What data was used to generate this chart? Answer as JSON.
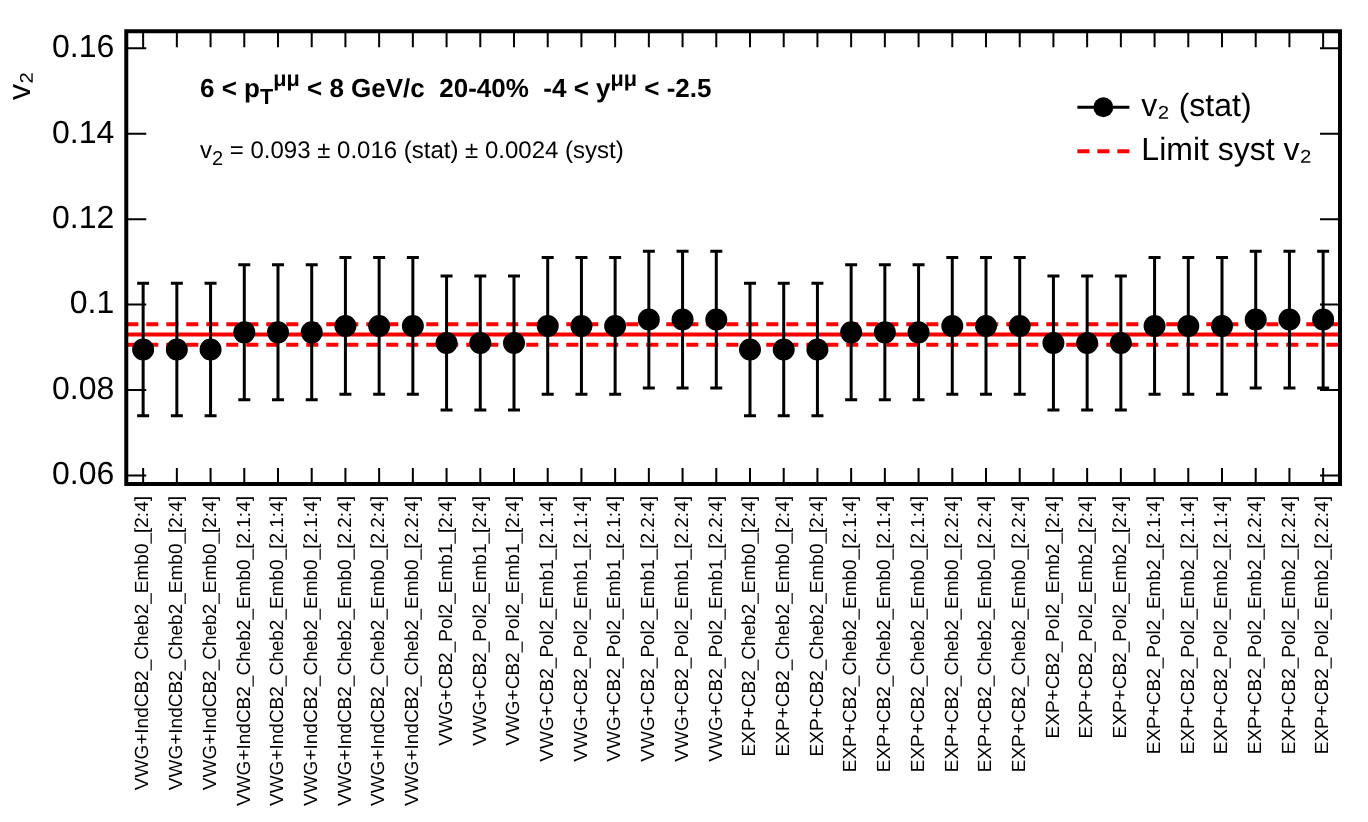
{
  "chart_data": {
    "type": "scatter",
    "ylabel": "v₂",
    "categories": [
      "VWG+IndCB2_Cheb2_Emb0_[2:4]",
      "VWG+IndCB2_Cheb2_Emb0_[2:4]",
      "VWG+IndCB2_Cheb2_Emb0_[2:4]",
      "VWG+IndCB2_Cheb2_Emb0_[2.1:4]",
      "VWG+IndCB2_Cheb2_Emb0_[2.1:4]",
      "VWG+IndCB2_Cheb2_Emb0_[2.1:4]",
      "VWG+IndCB2_Cheb2_Emb0_[2.2:4]",
      "VWG+IndCB2_Cheb2_Emb0_[2.2:4]",
      "VWG+IndCB2_Cheb2_Emb0_[2.2:4]",
      "VWG+CB2_Pol2_Emb1_[2:4]",
      "VWG+CB2_Pol2_Emb1_[2:4]",
      "VWG+CB2_Pol2_Emb1_[2:4]",
      "VWG+CB2_Pol2_Emb1_[2.1:4]",
      "VWG+CB2_Pol2_Emb1_[2.1:4]",
      "VWG+CB2_Pol2_Emb1_[2.1:4]",
      "VWG+CB2_Pol2_Emb1_[2.2:4]",
      "VWG+CB2_Pol2_Emb1_[2.2:4]",
      "VWG+CB2_Pol2_Emb1_[2.2:4]",
      "EXP+CB2_Cheb2_Emb0_[2:4]",
      "EXP+CB2_Cheb2_Emb0_[2:4]",
      "EXP+CB2_Cheb2_Emb0_[2:4]",
      "EXP+CB2_Cheb2_Emb0_[2.1:4]",
      "EXP+CB2_Cheb2_Emb0_[2.1:4]",
      "EXP+CB2_Cheb2_Emb0_[2.1:4]",
      "EXP+CB2_Cheb2_Emb0_[2.2:4]",
      "EXP+CB2_Cheb2_Emb0_[2.2:4]",
      "EXP+CB2_Cheb2_Emb0_[2.2:4]",
      "EXP+CB2_Pol2_Emb2_[2:4]",
      "EXP+CB2_Pol2_Emb2_[2:4]",
      "EXP+CB2_Pol2_Emb2_[2:4]",
      "EXP+CB2_Pol2_Emb2_[2.1:4]",
      "EXP+CB2_Pol2_Emb2_[2.1:4]",
      "EXP+CB2_Pol2_Emb2_[2.1:4]",
      "EXP+CB2_Pol2_Emb2_[2.2:4]",
      "EXP+CB2_Pol2_Emb2_[2.2:4]",
      "EXP+CB2_Pol2_Emb2_[2.2:4]"
    ],
    "series": [
      {
        "name": "v₂ (stat)",
        "color": "#000000",
        "values": [
          0.0895,
          0.0895,
          0.0895,
          0.0935,
          0.0935,
          0.0935,
          0.095,
          0.095,
          0.095,
          0.091,
          0.091,
          0.091,
          0.095,
          0.095,
          0.095,
          0.0965,
          0.0965,
          0.0965,
          0.0895,
          0.0895,
          0.0895,
          0.0935,
          0.0935,
          0.0935,
          0.095,
          0.095,
          0.095,
          0.091,
          0.091,
          0.091,
          0.095,
          0.095,
          0.095,
          0.0965,
          0.0965,
          0.0965
        ],
        "errors": [
          0.0155,
          0.0155,
          0.0155,
          0.0158,
          0.0158,
          0.0158,
          0.016,
          0.016,
          0.016,
          0.0157,
          0.0157,
          0.0157,
          0.016,
          0.016,
          0.016,
          0.016,
          0.016,
          0.016,
          0.0155,
          0.0155,
          0.0155,
          0.0158,
          0.0158,
          0.0158,
          0.016,
          0.016,
          0.016,
          0.0157,
          0.0157,
          0.0157,
          0.016,
          0.016,
          0.016,
          0.016,
          0.016,
          0.016
        ]
      }
    ],
    "ref_lines": [
      {
        "axis": "y",
        "value": 0.093,
        "label": null,
        "color": "#ff0000",
        "line_style": "solid"
      },
      {
        "axis": "y",
        "value": 0.0954,
        "label": "Limit syst v₂",
        "color": "#ff0000",
        "line_style": "dashed"
      },
      {
        "axis": "y",
        "value": 0.0906,
        "label": null,
        "color": "#ff0000",
        "line_style": "dashed"
      }
    ],
    "annotations": [
      "6 < p$_{T}$$^{μμ}$ < 8 GeV/c  20-40%  -4 < y$^{μμ}$ < -2.5",
      "v$_{2}$ = 0.093 ± 0.016 (stat) ± 0.0024 (syst)"
    ],
    "ylim": [
      0.058,
      0.164
    ],
    "yticks": [
      {
        "value": 0.06,
        "label": "0.06"
      },
      {
        "value": 0.08,
        "label": "0.08"
      },
      {
        "value": 0.1,
        "label": "0.1"
      },
      {
        "value": 0.12,
        "label": "0.12"
      },
      {
        "value": 0.14,
        "label": "0.14"
      },
      {
        "value": 0.16,
        "label": "0.16"
      }
    ],
    "grid": false,
    "legend": "top right",
    "marker": "circle"
  }
}
